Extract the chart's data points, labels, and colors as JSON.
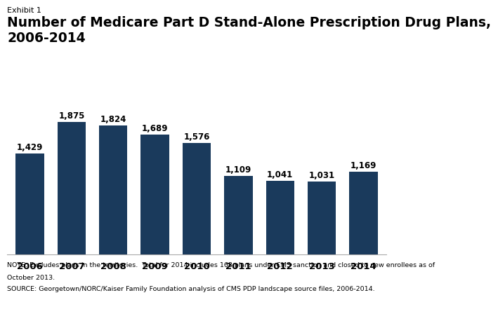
{
  "years": [
    "2006",
    "2007",
    "2008",
    "2009",
    "2010",
    "2011",
    "2012",
    "2013",
    "2014"
  ],
  "values": [
    1429,
    1875,
    1824,
    1689,
    1576,
    1109,
    1041,
    1031,
    1169
  ],
  "bar_color": "#1a3a5c",
  "exhibit_label": "Exhibit 1",
  "title_line1": "Number of Medicare Part D Stand-Alone Prescription Drug Plans,",
  "title_line2": "2006-2014",
  "note_line1": "NOTE: Excludes plans in the territories.  Total for 2014 includes 168 plans under CMS sanction and closed to new enrollees as of",
  "note_line2": "October 2013.",
  "source_line": "SOURCE: Georgetown/NORC/Kaiser Family Foundation analysis of CMS PDP landscape source files, 2006-2014.",
  "ylim": [
    0,
    2100
  ],
  "label_fontsize": 8.5,
  "exhibit_fontsize": 8,
  "title_fontsize": 13.5,
  "tick_fontsize": 9.5,
  "note_fontsize": 6.8
}
